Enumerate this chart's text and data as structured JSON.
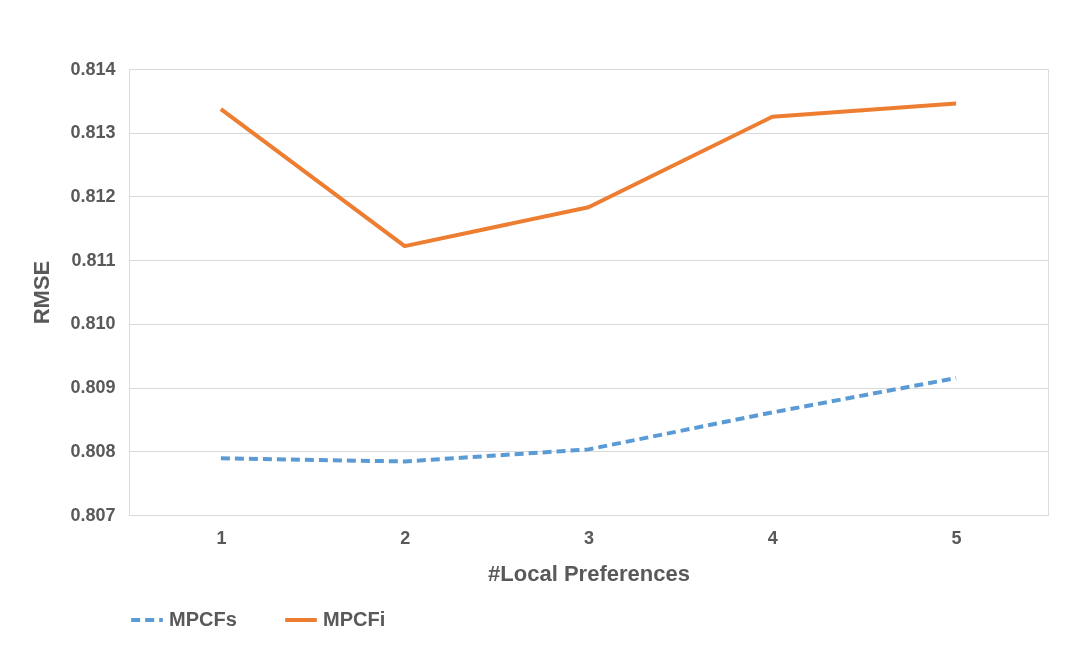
{
  "chart_data": {
    "type": "line",
    "xlabel": "#Local Preferences",
    "ylabel": "RMSE",
    "categories": [
      "1",
      "2",
      "3",
      "4",
      "5"
    ],
    "series": [
      {
        "name": "MPCFs",
        "color": "#5b9bd5",
        "line_style": "dashed",
        "values": [
          0.80789,
          0.80784,
          0.80803,
          0.80861,
          0.80915
        ]
      },
      {
        "name": "MPCFi",
        "color": "#ed7d31",
        "line_style": "solid",
        "values": [
          0.81337,
          0.81122,
          0.81183,
          0.81325,
          0.81346
        ]
      }
    ],
    "ylim": [
      0.807,
      0.814
    ],
    "yticks": [
      {
        "value": 0.807,
        "label": "0.807"
      },
      {
        "value": 0.808,
        "label": "0.808"
      },
      {
        "value": 0.809,
        "label": "0.809"
      },
      {
        "value": 0.81,
        "label": "0.810"
      },
      {
        "value": 0.811,
        "label": "0.811"
      },
      {
        "value": 0.812,
        "label": "0.812"
      },
      {
        "value": 0.813,
        "label": "0.813"
      },
      {
        "value": 0.814,
        "label": "0.814"
      }
    ],
    "grid": "y",
    "legend": "bottom",
    "marker": "none"
  }
}
